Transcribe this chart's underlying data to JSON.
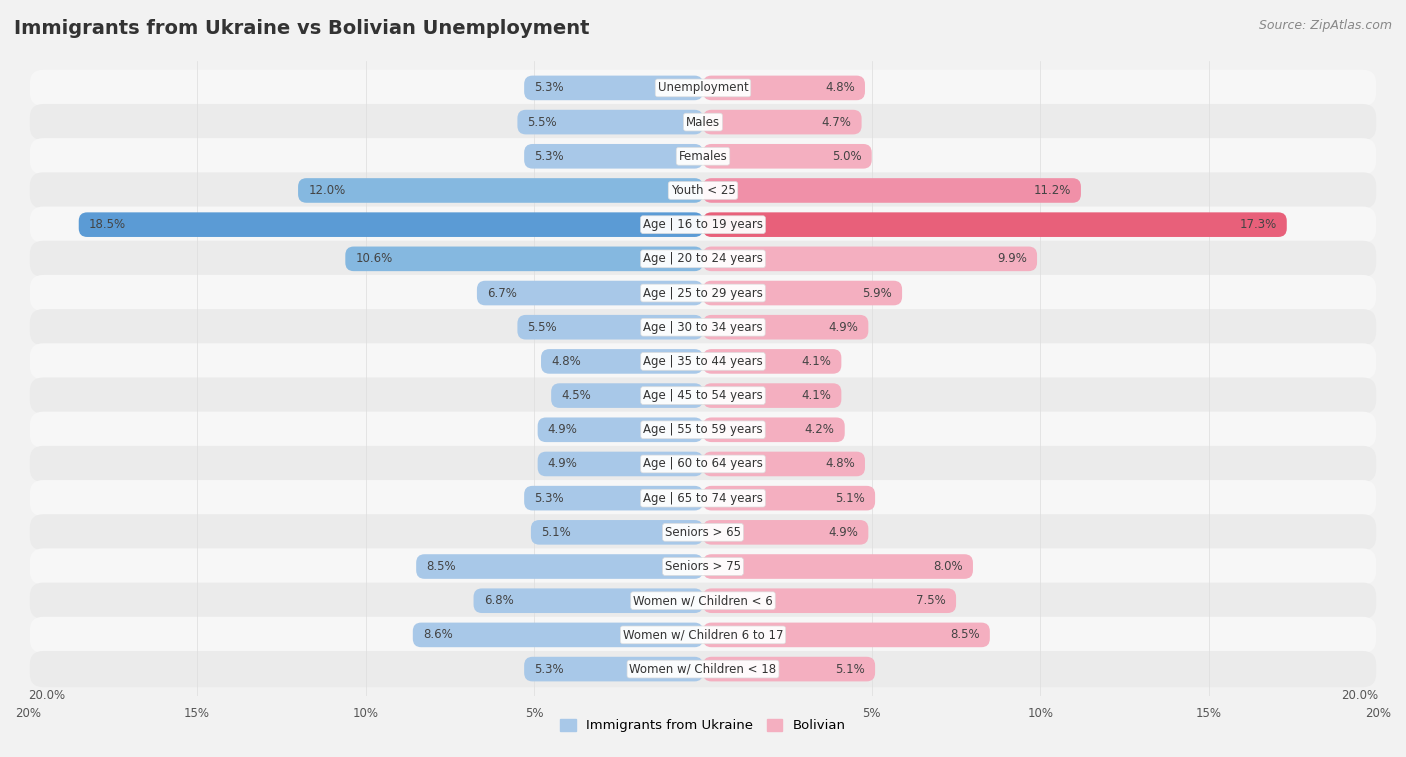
{
  "title": "Immigrants from Ukraine vs Bolivian Unemployment",
  "source": "Source: ZipAtlas.com",
  "categories": [
    "Unemployment",
    "Males",
    "Females",
    "Youth < 25",
    "Age | 16 to 19 years",
    "Age | 20 to 24 years",
    "Age | 25 to 29 years",
    "Age | 30 to 34 years",
    "Age | 35 to 44 years",
    "Age | 45 to 54 years",
    "Age | 55 to 59 years",
    "Age | 60 to 64 years",
    "Age | 65 to 74 years",
    "Seniors > 65",
    "Seniors > 75",
    "Women w/ Children < 6",
    "Women w/ Children 6 to 17",
    "Women w/ Children < 18"
  ],
  "ukraine_values": [
    5.3,
    5.5,
    5.3,
    12.0,
    18.5,
    10.6,
    6.7,
    5.5,
    4.8,
    4.5,
    4.9,
    4.9,
    5.3,
    5.1,
    8.5,
    6.8,
    8.6,
    5.3
  ],
  "bolivian_values": [
    4.8,
    4.7,
    5.0,
    11.2,
    17.3,
    9.9,
    5.9,
    4.9,
    4.1,
    4.1,
    4.2,
    4.8,
    5.1,
    4.9,
    8.0,
    7.5,
    8.5,
    5.1
  ],
  "ukraine_color_normal": "#a8c8e8",
  "bolivian_color_normal": "#f4afc0",
  "ukraine_color_medium": "#85b8e0",
  "bolivian_color_medium": "#f090a8",
  "ukraine_color_strong": "#5b9bd5",
  "bolivian_color_strong": "#e8607a",
  "row_bg_light": "#f7f7f7",
  "row_bg_dark": "#ebebeb",
  "xlim": 20.0,
  "legend_ukraine": "Immigrants from Ukraine",
  "legend_bolivian": "Bolivian",
  "title_fontsize": 14,
  "source_fontsize": 9,
  "bar_height": 0.72
}
